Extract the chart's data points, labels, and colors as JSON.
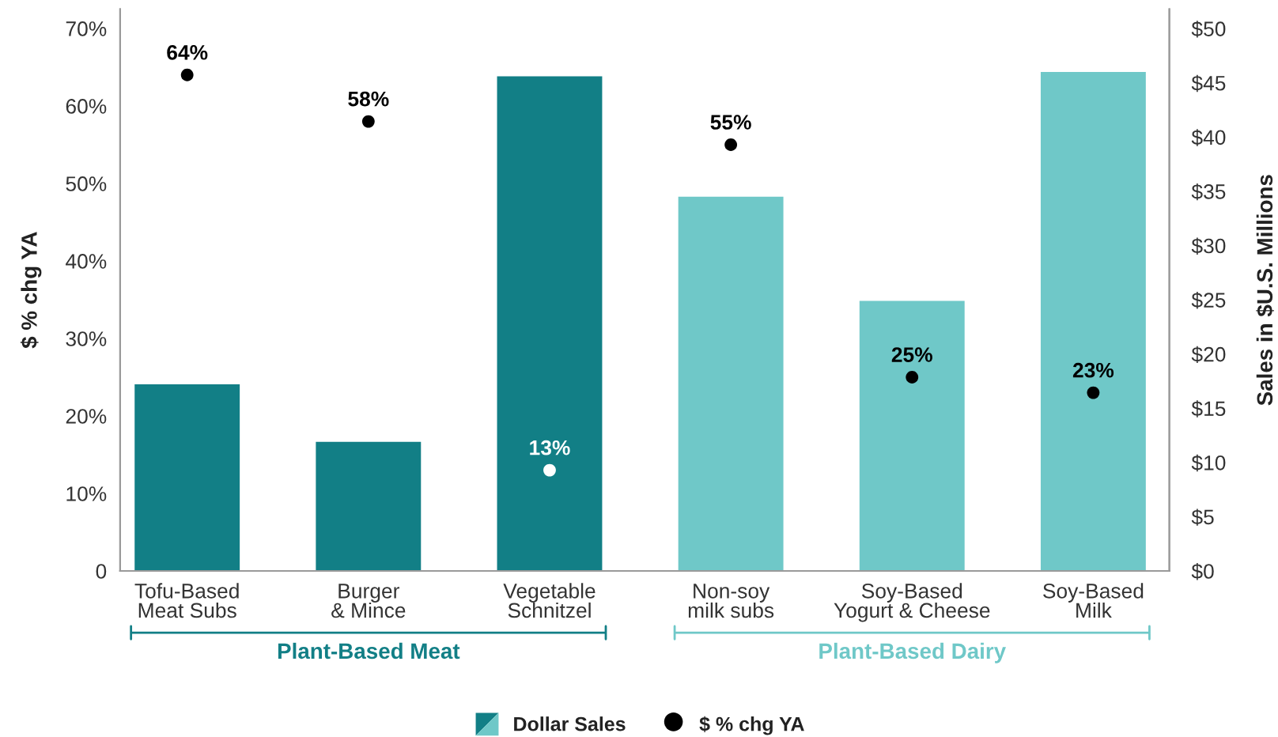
{
  "chart_data": {
    "type": "bar",
    "categories": [
      "Tofu-Based\nMeat Subs",
      "Burger\n& Mince",
      "Vegetable\nSchnitzel",
      "Non-soy\nmilk subs",
      "Soy-Based\nYogurt & Cheese",
      "Soy-Based\nMilk"
    ],
    "series": [
      {
        "name": "Dollar Sales",
        "axis": "y2",
        "color": "#127f86",
        "colors": [
          "#127f86",
          "#127f86",
          "#127f86",
          "#6fc8c8",
          "#6fc8c8",
          "#6fc8c8"
        ],
        "values": [
          17.2,
          11.9,
          45.6,
          34.5,
          24.9,
          46.0
        ]
      },
      {
        "name": "$ % chg YA",
        "type": "scatter",
        "color": "#000000",
        "colors": [
          "#000000",
          "#000000",
          "#ffffff",
          "#000000",
          "#000000",
          "#000000"
        ],
        "values": [
          64,
          58,
          13,
          55,
          25,
          23
        ],
        "value_labels": [
          "64%",
          "58%",
          "13%",
          "55%",
          "25%",
          "23%"
        ]
      }
    ],
    "ylabel": "$ % chg YA",
    "y2label": "Sales in $U.S. Millions",
    "ylim": [
      0,
      72.5
    ],
    "yticks": [
      0,
      {
        "value": 10,
        "label": "10%"
      },
      {
        "value": 20,
        "label": "20%"
      },
      {
        "value": 30,
        "label": "30%"
      },
      {
        "value": 40,
        "label": "40%"
      },
      {
        "value": 50,
        "label": "50%"
      },
      {
        "value": 60,
        "label": "60%"
      },
      {
        "value": 70,
        "label": "70%"
      }
    ],
    "y2lim": [
      0,
      51.8
    ],
    "y2ticks": [
      {
        "value": 0,
        "label": "$0"
      },
      {
        "value": 5,
        "label": "$5"
      },
      {
        "value": 10,
        "label": "$10"
      },
      {
        "value": 15,
        "label": "$15"
      },
      {
        "value": 20,
        "label": "$20"
      },
      {
        "value": 25,
        "label": "$25"
      },
      {
        "value": 30,
        "label": "$30"
      },
      {
        "value": 35,
        "label": "$35"
      },
      {
        "value": 40,
        "label": "$40"
      },
      {
        "value": 45,
        "label": "$45"
      },
      {
        "value": 50,
        "label": "$50"
      }
    ],
    "annotations": [
      "Plant-Based Meat",
      "Plant-Based Dairy"
    ],
    "marker": "circle",
    "legend": "bottom"
  }
}
